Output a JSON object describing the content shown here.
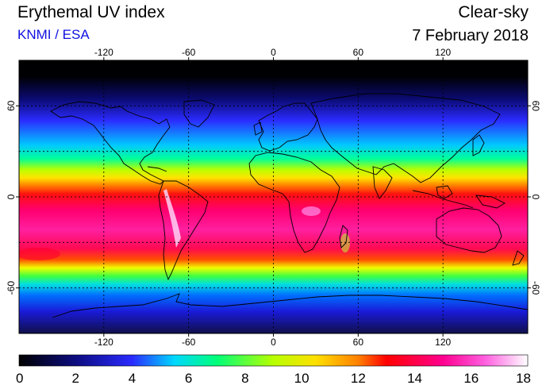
{
  "header": {
    "title": "Erythemal UV index",
    "source": "KNMI / ESA",
    "mode": "Clear-sky",
    "date": "7 February 2018"
  },
  "map": {
    "projection": "equirectangular",
    "lon_range": [
      -180,
      180
    ],
    "lat_range": [
      -90,
      90
    ],
    "lon_ticks": [
      {
        "value": -120,
        "label": "-120"
      },
      {
        "value": -60,
        "label": "-60"
      },
      {
        "value": 0,
        "label": "0"
      },
      {
        "value": 60,
        "label": "60"
      },
      {
        "value": 120,
        "label": "120"
      }
    ],
    "lat_ticks": [
      {
        "value": 60,
        "label": "60"
      },
      {
        "value": 0,
        "label": "0"
      },
      {
        "value": -60,
        "label": "-60"
      }
    ],
    "grid_lat_lines": [
      60,
      30,
      0,
      -30,
      -60
    ],
    "grid": true,
    "colorbar": {
      "min": 0,
      "max": 18,
      "labels": [
        "0",
        "2",
        "4",
        "6",
        "8",
        "10",
        "12",
        "14",
        "16",
        "18"
      ],
      "stops": [
        {
          "v": 0,
          "color": "#000000"
        },
        {
          "v": 2,
          "color": "#0c0c80"
        },
        {
          "v": 4,
          "color": "#2a2aff"
        },
        {
          "v": 5.5,
          "color": "#00d8ff"
        },
        {
          "v": 7,
          "color": "#00ff78"
        },
        {
          "v": 9,
          "color": "#b8ff00"
        },
        {
          "v": 10.5,
          "color": "#ffe000"
        },
        {
          "v": 12,
          "color": "#ff8000"
        },
        {
          "v": 13,
          "color": "#ff0000"
        },
        {
          "v": 15,
          "color": "#ff0090"
        },
        {
          "v": 16.5,
          "color": "#ff60e0"
        },
        {
          "v": 18,
          "color": "#ffffff"
        }
      ]
    }
  }
}
